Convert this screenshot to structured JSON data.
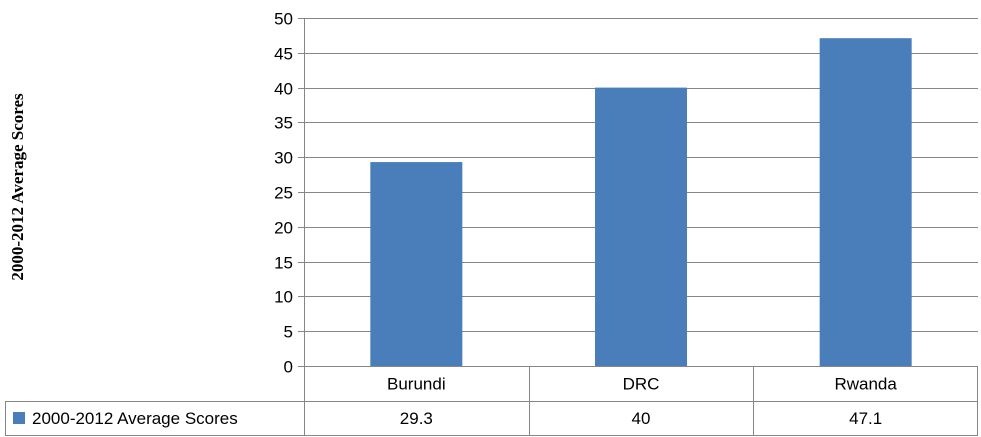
{
  "chart_data": {
    "type": "bar",
    "ylabel": "2000-2012 Average Scores",
    "xlabel": "",
    "categories": [
      "Burundi",
      "DRC",
      "Rwanda"
    ],
    "series": [
      {
        "name": "2000-2012 Average Scores",
        "values": [
          29.3,
          40,
          47.1
        ],
        "labels": [
          "29.3",
          "40",
          "47.1"
        ],
        "color": "#4a7ebb"
      }
    ],
    "ylim": [
      0,
      50
    ],
    "yticks": [
      0,
      5,
      10,
      15,
      20,
      25,
      30,
      35,
      40,
      45,
      50
    ],
    "grid": true,
    "legend": "data-table"
  }
}
